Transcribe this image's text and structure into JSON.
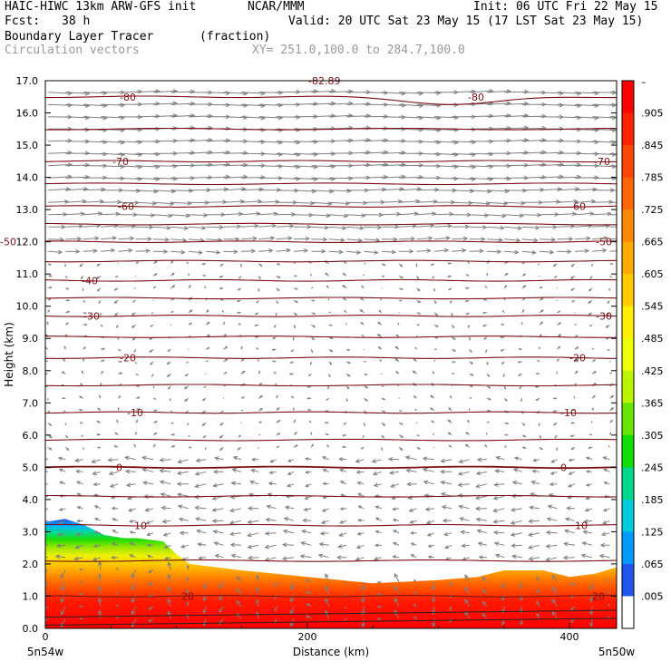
{
  "header": {
    "model": "HAIC-HIWC 13km ARW-GFS init",
    "org": "NCAR/MMM",
    "init": "Init: 06 UTC Fri 22 May 15",
    "fcst_label": "Fcst:",
    "fcst_value": "38 h",
    "valid": "Valid: 20 UTC Sat 23 May 15 (17 LST Sat 23 May 15)",
    "field": "Boundary Layer Tracer",
    "field_units": "(fraction)",
    "overlay": "Circulation vectors",
    "xy": "XY= 251.0,100.0 to 284.7,100.0"
  },
  "colors": {
    "contour": "#7a0f14",
    "vector": "#7f7f7f",
    "frame": "#000000"
  },
  "chart_data": {
    "type": "heatmap",
    "title": "Boundary Layer Tracer",
    "xlabel": "Distance (km)",
    "ylabel": "Height (km)",
    "xlim": [
      0,
      436
    ],
    "ylim": [
      0.0,
      17.0
    ],
    "x_ticks": [
      "0",
      "200",
      "400"
    ],
    "y_ticks": [
      "0.0",
      "1.0",
      "2.0",
      "3.0",
      "4.0",
      "5.0",
      "6.0",
      "7.0",
      "8.0",
      "9.0",
      "10.0",
      "11.0",
      "12.0",
      "13.0",
      "14.0",
      "15.0",
      "16.0",
      "17.0"
    ],
    "x_endpoint_labels": {
      "left": "5n54w",
      "right": "5n50w"
    },
    "colorbar": {
      "labels": [
        "–",
        ".905",
        ".845",
        ".785",
        ".725",
        ".665",
        ".605",
        ".545",
        ".485",
        ".425",
        ".365",
        ".305",
        ".245",
        ".185",
        ".125",
        ".065",
        ".005"
      ],
      "colors": [
        "#ff0000",
        "#ff2200",
        "#ff4400",
        "#ff6600",
        "#ff8800",
        "#ffaa00",
        "#ffcc00",
        "#ffee00",
        "#eeff00",
        "#bbf500",
        "#66e600",
        "#11dd00",
        "#00d98c",
        "#00ccdd",
        "#0099ff",
        "#2255ee",
        "#ffffff"
      ]
    },
    "tracer_top_profile": {
      "x": [
        0,
        15,
        30,
        45,
        60,
        70,
        90,
        100,
        110,
        150,
        200,
        250,
        300,
        330,
        350,
        380,
        400,
        420,
        436
      ],
      "y": [
        3.3,
        3.4,
        3.2,
        2.9,
        2.8,
        2.8,
        2.7,
        2.3,
        2.0,
        1.8,
        1.6,
        1.4,
        1.5,
        1.6,
        1.8,
        1.8,
        1.6,
        1.7,
        1.9
      ]
    },
    "temperature_contours": [
      {
        "label": "-80",
        "height": 16.5
      },
      {
        "label": "-70",
        "height": 14.5
      },
      {
        "label": "-60",
        "height": 13.1
      },
      {
        "label": "-50",
        "height": 12.0
      },
      {
        "label": "-40",
        "height": 10.8
      },
      {
        "label": "-30",
        "height": 9.7
      },
      {
        "label": "-20",
        "height": 8.4
      },
      {
        "label": "-10",
        "height": 6.7
      },
      {
        "label": "0",
        "height": 5.0
      },
      {
        "label": "10",
        "height": 3.2
      },
      {
        "label": "20",
        "height": 1.0
      }
    ],
    "contour_top_label": "-82.89",
    "vectors": {
      "upper": {
        "from_height": 11.5,
        "to_height": 17.0,
        "direction": "eastward",
        "speed_max": 1.0
      },
      "middle": {
        "from_height": 5.5,
        "to_height": 11.5,
        "direction": "weak",
        "speed_max": 0.3
      },
      "lower": {
        "from_height": 2.0,
        "to_height": 5.5,
        "direction": "westward",
        "speed_max": 0.5
      }
    }
  }
}
